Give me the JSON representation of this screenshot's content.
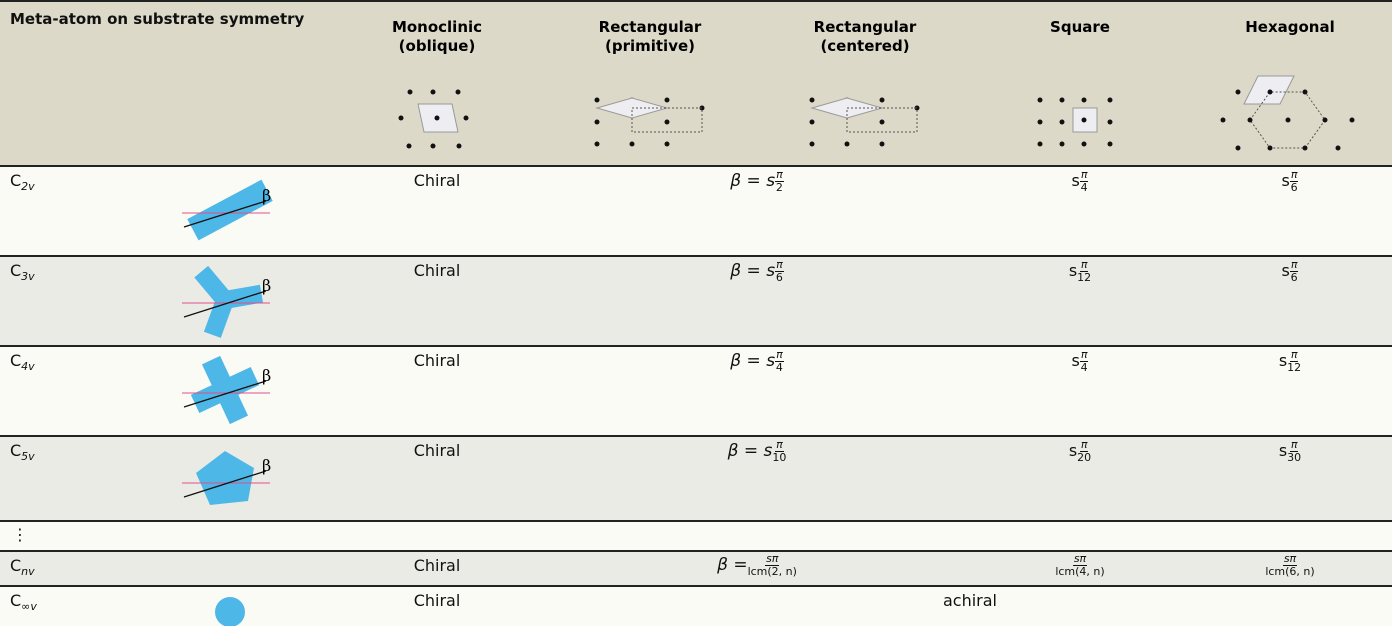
{
  "header": {
    "title": "Meta-atom on substrate symmetry",
    "columns": [
      "Monoclinic (oblique)",
      "Rectangular (primitive)",
      "Rectangular (centered)",
      "Square",
      "Hexagonal"
    ]
  },
  "rows": [
    {
      "symbol": "C",
      "subscript": "2v",
      "angle_label": "β",
      "monoclinic": "Chiral",
      "rectangular": {
        "lhs": "β = s",
        "numerator": "π",
        "denominator": "2"
      },
      "square": {
        "prefix": "s",
        "numerator": "π",
        "denominator": "4"
      },
      "hexagonal": {
        "prefix": "s",
        "numerator": "π",
        "denominator": "6"
      }
    },
    {
      "symbol": "C",
      "subscript": "3v",
      "angle_label": "β",
      "monoclinic": "Chiral",
      "rectangular": {
        "lhs": "β = s",
        "numerator": "π",
        "denominator": "6"
      },
      "square": {
        "prefix": "s",
        "numerator": "π",
        "denominator": "12"
      },
      "hexagonal": {
        "prefix": "s",
        "numerator": "π",
        "denominator": "6"
      }
    },
    {
      "symbol": "C",
      "subscript": "4v",
      "angle_label": "β",
      "monoclinic": "Chiral",
      "rectangular": {
        "lhs": "β = s",
        "numerator": "π",
        "denominator": "4"
      },
      "square": {
        "prefix": "s",
        "numerator": "π",
        "denominator": "4"
      },
      "hexagonal": {
        "prefix": "s",
        "numerator": "π",
        "denominator": "12"
      }
    },
    {
      "symbol": "C",
      "subscript": "5v",
      "angle_label": "β",
      "monoclinic": "Chiral",
      "rectangular": {
        "lhs": "β = s",
        "numerator": "π",
        "denominator": "10"
      },
      "square": {
        "prefix": "s",
        "numerator": "π",
        "denominator": "20"
      },
      "hexagonal": {
        "prefix": "s",
        "numerator": "π",
        "denominator": "30"
      }
    }
  ],
  "ellipsis": "⋮",
  "general_row": {
    "symbol": "C",
    "subscript": "nv",
    "monoclinic": "Chiral",
    "rectangular": {
      "lhs": "β =",
      "numerator": "sπ",
      "denominator": "lcm(2, n)"
    },
    "square": {
      "numerator": "sπ",
      "denominator": "lcm(4, n)"
    },
    "hexagonal": {
      "numerator": "sπ",
      "denominator": "lcm(6, n)"
    }
  },
  "continuous_row": {
    "symbol": "C",
    "subscript": "∞v",
    "monoclinic": "Chiral",
    "others": "achiral"
  }
}
